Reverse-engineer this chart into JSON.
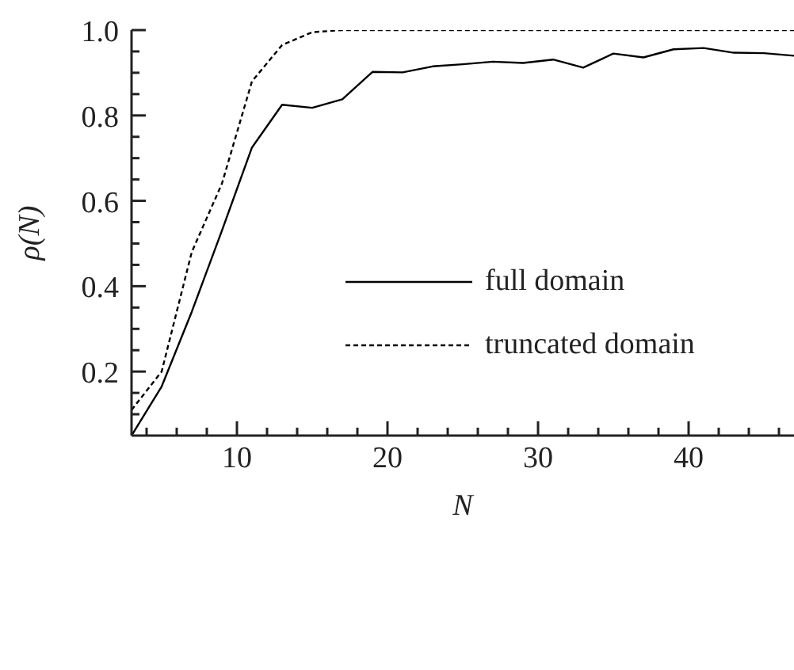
{
  "chart_data": {
    "type": "line",
    "xlabel": "N",
    "ylabel": "ρ(N)",
    "xlim": [
      3,
      47
    ],
    "ylim": [
      0.05,
      1.0
    ],
    "xticks": [
      {
        "value": 4,
        "label": null
      },
      {
        "value": 6,
        "label": null
      },
      {
        "value": 8,
        "label": null
      },
      10,
      {
        "value": 12,
        "label": null
      },
      {
        "value": 14,
        "label": null
      },
      {
        "value": 16,
        "label": null
      },
      {
        "value": 18,
        "label": null
      },
      20,
      {
        "value": 22,
        "label": null
      },
      {
        "value": 24,
        "label": null
      },
      {
        "value": 26,
        "label": null
      },
      {
        "value": 28,
        "label": null
      },
      30,
      {
        "value": 32,
        "label": null
      },
      {
        "value": 34,
        "label": null
      },
      {
        "value": 36,
        "label": null
      },
      {
        "value": 38,
        "label": null
      },
      40,
      {
        "value": 42,
        "label": null
      },
      {
        "value": 44,
        "label": null
      },
      {
        "value": 46,
        "label": null
      }
    ],
    "yticks": [
      {
        "value": 0.1,
        "label": null
      },
      {
        "value": 0.15,
        "label": null
      },
      0.2,
      {
        "value": 0.25,
        "label": null
      },
      {
        "value": 0.3,
        "label": null
      },
      {
        "value": 0.35,
        "label": null
      },
      0.4,
      {
        "value": 0.45,
        "label": null
      },
      {
        "value": 0.5,
        "label": null
      },
      {
        "value": 0.55,
        "label": null
      },
      0.6,
      {
        "value": 0.65,
        "label": null
      },
      {
        "value": 0.7,
        "label": null
      },
      {
        "value": 0.75,
        "label": null
      },
      0.8,
      {
        "value": 0.85,
        "label": null
      },
      {
        "value": 0.9,
        "label": null
      },
      {
        "value": 0.95,
        "label": null
      },
      {
        "value": 1.0,
        "label": "1.0"
      }
    ],
    "x": [
      3,
      5,
      7,
      9,
      11,
      13,
      15,
      17,
      19,
      21,
      23,
      25,
      27,
      29,
      31,
      33,
      35,
      37,
      39,
      41,
      43,
      45,
      47
    ],
    "series": [
      {
        "name": "full domain",
        "color": "#000000",
        "line_style": "solid",
        "values": [
          0.05,
          0.165,
          0.34,
          0.53,
          0.725,
          0.825,
          0.818,
          0.838,
          0.902,
          0.901,
          0.915,
          0.92,
          0.926,
          0.923,
          0.931,
          0.912,
          0.945,
          0.936,
          0.955,
          0.958,
          0.947,
          0.946,
          0.94
        ]
      },
      {
        "name": "truncated domain",
        "color": "#000000",
        "line_style": "dashed",
        "values": [
          0.11,
          0.2,
          0.48,
          0.64,
          0.88,
          0.965,
          0.995,
          1.0,
          1.0,
          1.0,
          1.0,
          1.0,
          1.0,
          1.0,
          1.0,
          1.0,
          1.0,
          1.0,
          1.0,
          1.0,
          1.0,
          1.0,
          1.0
        ]
      }
    ],
    "legend": "right",
    "grid": false,
    "marker": "none"
  }
}
